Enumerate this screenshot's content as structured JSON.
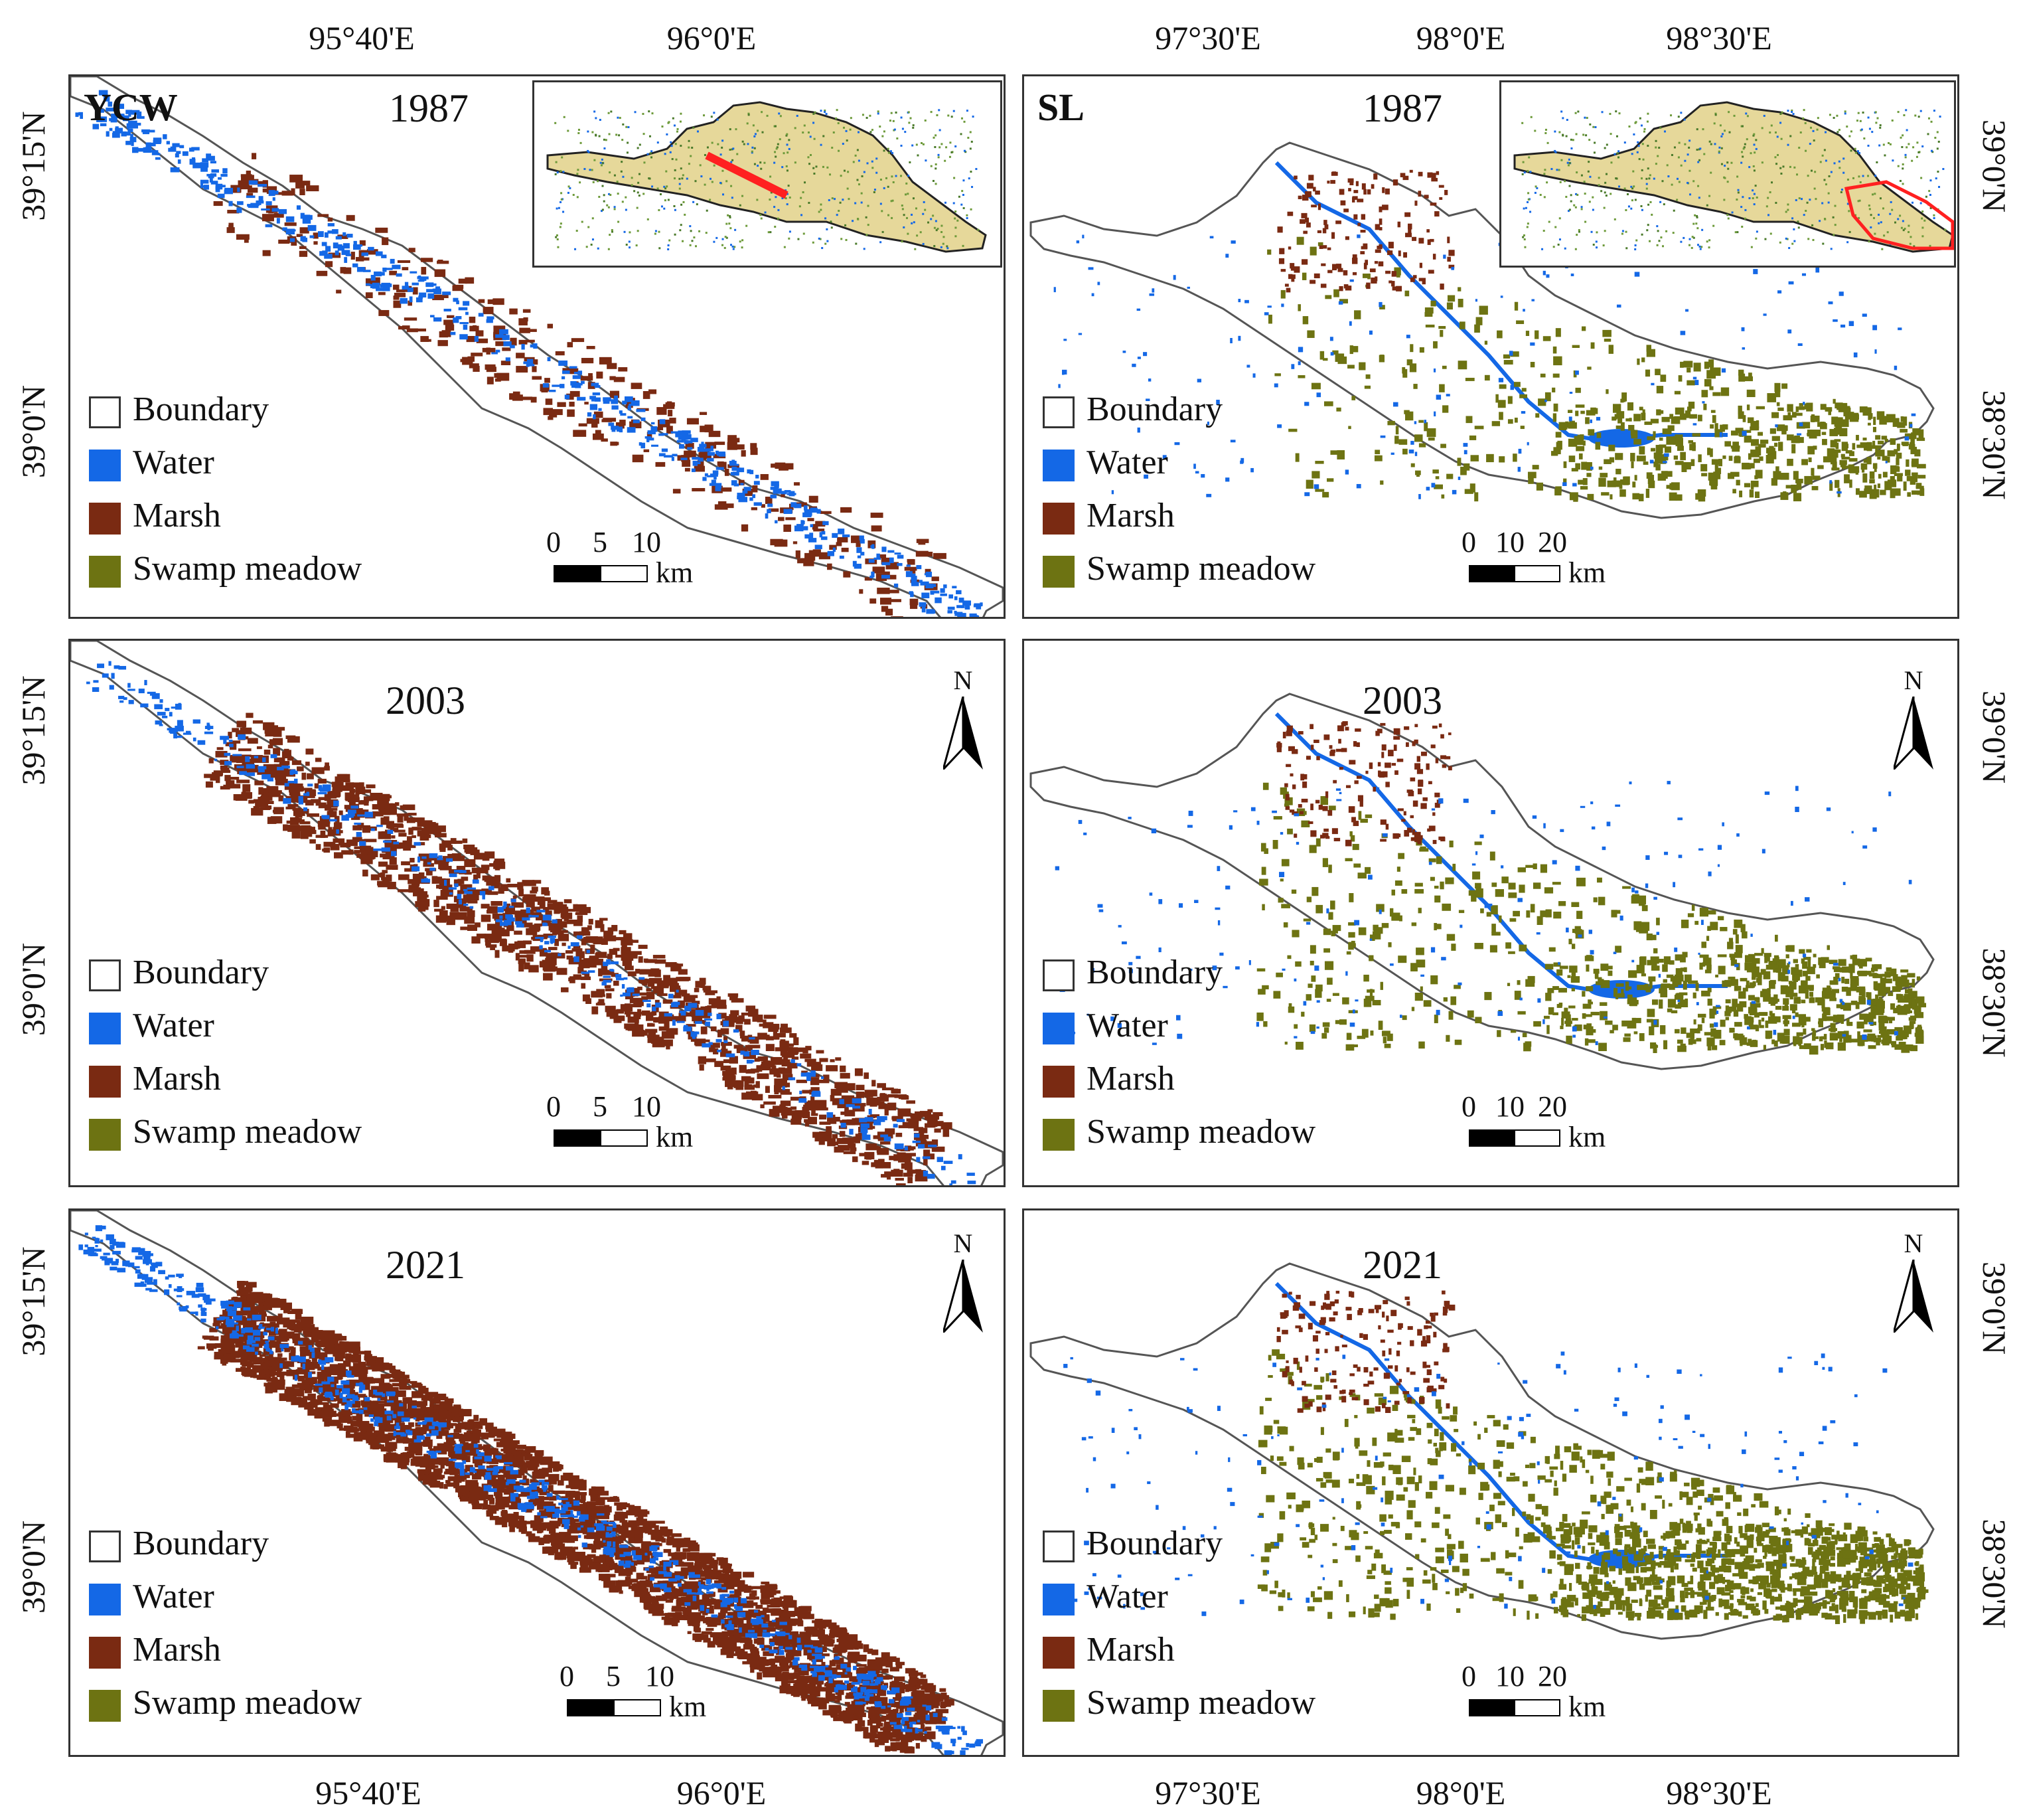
{
  "legend": {
    "boundary": "Boundary",
    "water": "Water",
    "marsh": "Marsh",
    "swamp": "Swamp meadow"
  },
  "colors": {
    "boundary": "#ffffff",
    "water": "#1468e6",
    "marsh": "#7a2a12",
    "swamp": "#6d7312",
    "inset_fill": "#e6d89a",
    "highlight": "#ff2020"
  },
  "north": "N",
  "ycw": {
    "code": "YCW",
    "years": [
      "1987",
      "2003",
      "2021"
    ],
    "lon_labels": [
      "95°40'E",
      "96°0'E"
    ],
    "lat_labels": [
      "39°15'N",
      "39°0'N"
    ],
    "scale": {
      "ticks": [
        "0",
        "5",
        "10"
      ],
      "unit": "km"
    }
  },
  "sl": {
    "code": "SL",
    "years": [
      "1987",
      "2003",
      "2021"
    ],
    "lon_labels": [
      "97°30'E",
      "98°0'E",
      "98°30'E"
    ],
    "lat_labels": [
      "39°0'N",
      "38°30'N"
    ],
    "scale": {
      "ticks": [
        "0",
        "10",
        "20"
      ],
      "unit": "km"
    }
  },
  "icons": [
    "north-arrow-icon",
    "inset-locator-map"
  ]
}
